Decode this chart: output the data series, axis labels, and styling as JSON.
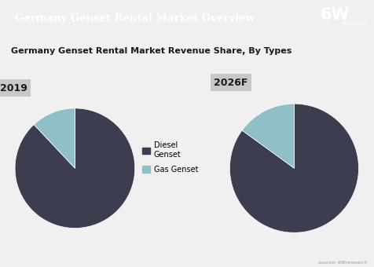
{
  "title": "Germany Genset Rental Market Overview",
  "subtitle": "Germany Genset Rental Market Revenue Share, By Types",
  "header_bg": "#2d3e50",
  "header_text_color": "#ffffff",
  "subtitle_bg": "#c8c8c8",
  "subtitle_text_color": "#1a1a1a",
  "body_bg": "#f0f0f0",
  "pie1_label": "2019",
  "pie2_label": "2026F",
  "diesel_color": "#3d3d50",
  "gas_color": "#90bfc8",
  "pie1_values": [
    88,
    12
  ],
  "pie2_values": [
    85,
    15
  ],
  "legend_label_diesel": "Diesel\nGenset",
  "legend_label_gas": "Gas Genset",
  "source_text": "source: 6Wresearch",
  "logo_6w": "6W",
  "logo_research": "research"
}
